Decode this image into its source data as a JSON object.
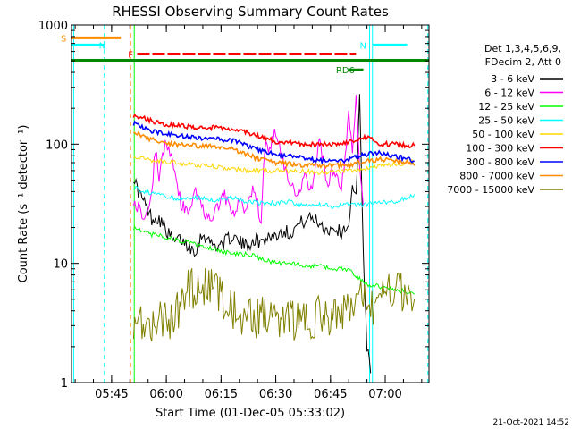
{
  "chart_data": {
    "type": "line",
    "title": "RHESSI Observing Summary Count Rates",
    "xlabel": "Start Time (01-Dec-05 05:33:02)",
    "ylabel": "Count Rate (s⁻¹ detector⁻¹)",
    "yscale": "log",
    "ylim": [
      1,
      1000
    ],
    "xlim_minutes_after_0530": [
      4,
      102
    ],
    "x_ticks": [
      "05:45",
      "06:00",
      "06:15",
      "06:30",
      "06:45",
      "07:00"
    ],
    "y_ticks": [
      "1",
      "10",
      "100",
      "1000"
    ],
    "legend_header": [
      "Det 1,3,4,5,6,9,",
      "FDecim 2, Att 0"
    ],
    "legend_placement": "right",
    "timestamp": "21-Oct-2021 14:52",
    "flags": [
      {
        "label": "S",
        "color": "#ff8c00",
        "t_start": 4,
        "t_end": 17.5,
        "value": 780
      },
      {
        "label": "N",
        "color": "#00ffff",
        "t_start": 4,
        "t_end": 13,
        "value": 680
      },
      {
        "label": "F",
        "color": "#ff0000",
        "t_start": 22,
        "t_end": 82,
        "value": 570
      },
      {
        "label": "RD6",
        "color": "#008800",
        "t_start": 4,
        "t_end": 102,
        "value": 505
      },
      {
        "label": "RD6",
        "color": "#008800",
        "t_start": 80,
        "t_end": 84,
        "value": 420
      },
      {
        "label": "N",
        "color": "#00ffff",
        "t_start": 86.5,
        "t_end": 96,
        "value": 680
      }
    ],
    "series": [
      {
        "name": "3 - 6 keV",
        "color": "#000000",
        "x": [
          21,
          22,
          24,
          26,
          28,
          30,
          32,
          34,
          36,
          38,
          40,
          42,
          44,
          46,
          48,
          50,
          52,
          54,
          56,
          58,
          60,
          62,
          64,
          66,
          68,
          70,
          72,
          74,
          76,
          78,
          80,
          81,
          82,
          83,
          84,
          85,
          86
        ],
        "values": [
          55,
          42,
          32,
          24,
          24,
          19,
          15,
          16,
          14,
          13,
          18,
          15,
          14,
          15,
          17,
          15,
          14,
          16,
          15,
          17,
          17,
          19,
          18,
          21,
          23,
          24,
          22,
          19,
          20,
          18,
          22,
          40,
          35,
          260,
          12,
          2,
          1.2
        ]
      },
      {
        "name": "6 - 12 keV",
        "color": "#ff00ff",
        "x": [
          21,
          22,
          24,
          26,
          27,
          28,
          30,
          32,
          34,
          36,
          38,
          40,
          42,
          44,
          46,
          48,
          50,
          52,
          54,
          56,
          57,
          58,
          60,
          62,
          64,
          66,
          68,
          70,
          72,
          74,
          76,
          78,
          80,
          81,
          82,
          83,
          84
        ],
        "values": [
          35,
          30,
          25,
          40,
          90,
          55,
          110,
          60,
          32,
          25,
          45,
          28,
          22,
          30,
          38,
          24,
          32,
          28,
          45,
          22,
          100,
          90,
          130,
          70,
          45,
          35,
          55,
          40,
          110,
          45,
          60,
          40,
          170,
          90,
          230,
          70,
          30
        ]
      },
      {
        "name": "12 - 25 keV",
        "color": "#00ff00",
        "x": [
          21,
          24,
          28,
          32,
          36,
          40,
          44,
          48,
          52,
          56,
          60,
          64,
          68,
          72,
          76,
          80,
          84,
          86,
          88,
          92,
          96,
          98
        ],
        "values": [
          20,
          18,
          17,
          16,
          15,
          14,
          13,
          12,
          12,
          11,
          10,
          10,
          9.5,
          9.5,
          9,
          9,
          7,
          6.5,
          6.5,
          6,
          5.8,
          5.5
        ]
      },
      {
        "name": "25 - 50 keV",
        "color": "#00ffff",
        "x": [
          21,
          24,
          28,
          32,
          36,
          40,
          44,
          48,
          52,
          56,
          60,
          64,
          68,
          72,
          76,
          80,
          84,
          88,
          92,
          96,
          98
        ],
        "values": [
          44,
          40,
          38,
          35,
          36,
          35,
          34,
          36,
          33,
          32,
          32,
          33,
          30,
          31,
          30,
          31,
          31,
          32,
          33,
          35,
          38
        ]
      },
      {
        "name": "50 - 100 keV",
        "color": "#ffd700",
        "x": [
          21,
          24,
          28,
          32,
          36,
          40,
          44,
          48,
          52,
          56,
          60,
          64,
          68,
          72,
          76,
          80,
          84,
          88,
          92,
          96,
          98
        ],
        "values": [
          80,
          75,
          72,
          70,
          68,
          66,
          65,
          62,
          60,
          60,
          60,
          60,
          59,
          58,
          58,
          60,
          62,
          66,
          68,
          70,
          72
        ]
      },
      {
        "name": "100 - 300 keV",
        "color": "#ff0000",
        "x": [
          21,
          24,
          28,
          32,
          36,
          40,
          44,
          48,
          52,
          56,
          60,
          64,
          68,
          72,
          76,
          80,
          84,
          86,
          88,
          92,
          96,
          98
        ],
        "values": [
          175,
          165,
          150,
          145,
          140,
          135,
          140,
          135,
          125,
          115,
          105,
          105,
          100,
          100,
          100,
          105,
          112,
          115,
          100,
          100,
          98,
          97
        ]
      },
      {
        "name": "300 - 800 keV",
        "color": "#0000ff",
        "x": [
          21,
          24,
          28,
          32,
          36,
          40,
          44,
          48,
          52,
          56,
          60,
          64,
          68,
          72,
          76,
          80,
          84,
          88,
          92,
          96,
          98
        ],
        "values": [
          150,
          135,
          125,
          120,
          115,
          112,
          110,
          108,
          98,
          88,
          82,
          80,
          76,
          73,
          72,
          74,
          82,
          84,
          80,
          75,
          72
        ]
      },
      {
        "name": "800 - 7000 keV",
        "color": "#ff8c00",
        "x": [
          21,
          24,
          28,
          32,
          36,
          40,
          44,
          48,
          52,
          56,
          60,
          64,
          68,
          72,
          76,
          80,
          84,
          88,
          92,
          96,
          98
        ],
        "values": [
          130,
          115,
          105,
          100,
          98,
          96,
          95,
          92,
          82,
          74,
          70,
          68,
          66,
          66,
          66,
          67,
          72,
          74,
          74,
          70,
          66
        ]
      },
      {
        "name": "7000 - 15000 keV",
        "color": "#808000",
        "x": [
          21,
          24,
          28,
          32,
          36,
          40,
          44,
          48,
          52,
          56,
          60,
          64,
          68,
          72,
          76,
          80,
          84,
          86,
          88,
          92,
          96,
          98
        ],
        "values": [
          3.5,
          3.3,
          3.4,
          3.5,
          6,
          6.3,
          5.8,
          4,
          3.4,
          3.5,
          3.5,
          3.3,
          3.5,
          3.6,
          3.6,
          4.5,
          5.5,
          4,
          6,
          6.5,
          5,
          5
        ]
      }
    ],
    "vertical_markers": [
      {
        "t": 4.6,
        "color": "#00ffff",
        "style": "solid"
      },
      {
        "t": 13,
        "color": "#00ffff",
        "style": "dashed"
      },
      {
        "t": 20.2,
        "color": "#ff8c00",
        "style": "dashed"
      },
      {
        "t": 21.2,
        "color": "#00ff00",
        "style": "solid"
      },
      {
        "t": 85.7,
        "color": "#00ffff",
        "style": "solid"
      },
      {
        "t": 86.5,
        "color": "#00ffff",
        "style": "solid"
      },
      {
        "t": 101.7,
        "color": "#00ffff",
        "style": "dashed"
      }
    ]
  }
}
